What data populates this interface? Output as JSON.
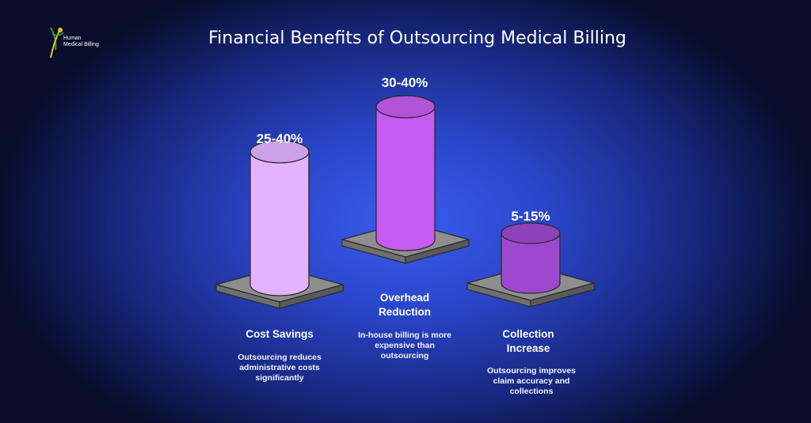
{
  "brand": {
    "line1": "Human",
    "line2": "Medical Billing"
  },
  "title": "Financial Benefits of Outsourcing Medical Billing",
  "chart_data": {
    "type": "bar",
    "title": "Financial Benefits of Outsourcing Medical Billing",
    "categories": [
      "Cost Savings",
      "Overhead Reduction",
      "Collection Increase"
    ],
    "value_labels": [
      "25-40%",
      "30-40%",
      "5-15%"
    ],
    "ranges": [
      [
        25,
        40
      ],
      [
        30,
        40
      ],
      [
        5,
        15
      ]
    ],
    "descriptions": [
      "Outsourcing reduces administrative costs significantly",
      "In-house billing is more expensive than outsourcing",
      "Outsourcing improves claim accuracy and collections"
    ],
    "colors": [
      "#e3b3ff",
      "#c65cf2",
      "#9c49cf"
    ],
    "platform_color": "#8e8e8e"
  }
}
